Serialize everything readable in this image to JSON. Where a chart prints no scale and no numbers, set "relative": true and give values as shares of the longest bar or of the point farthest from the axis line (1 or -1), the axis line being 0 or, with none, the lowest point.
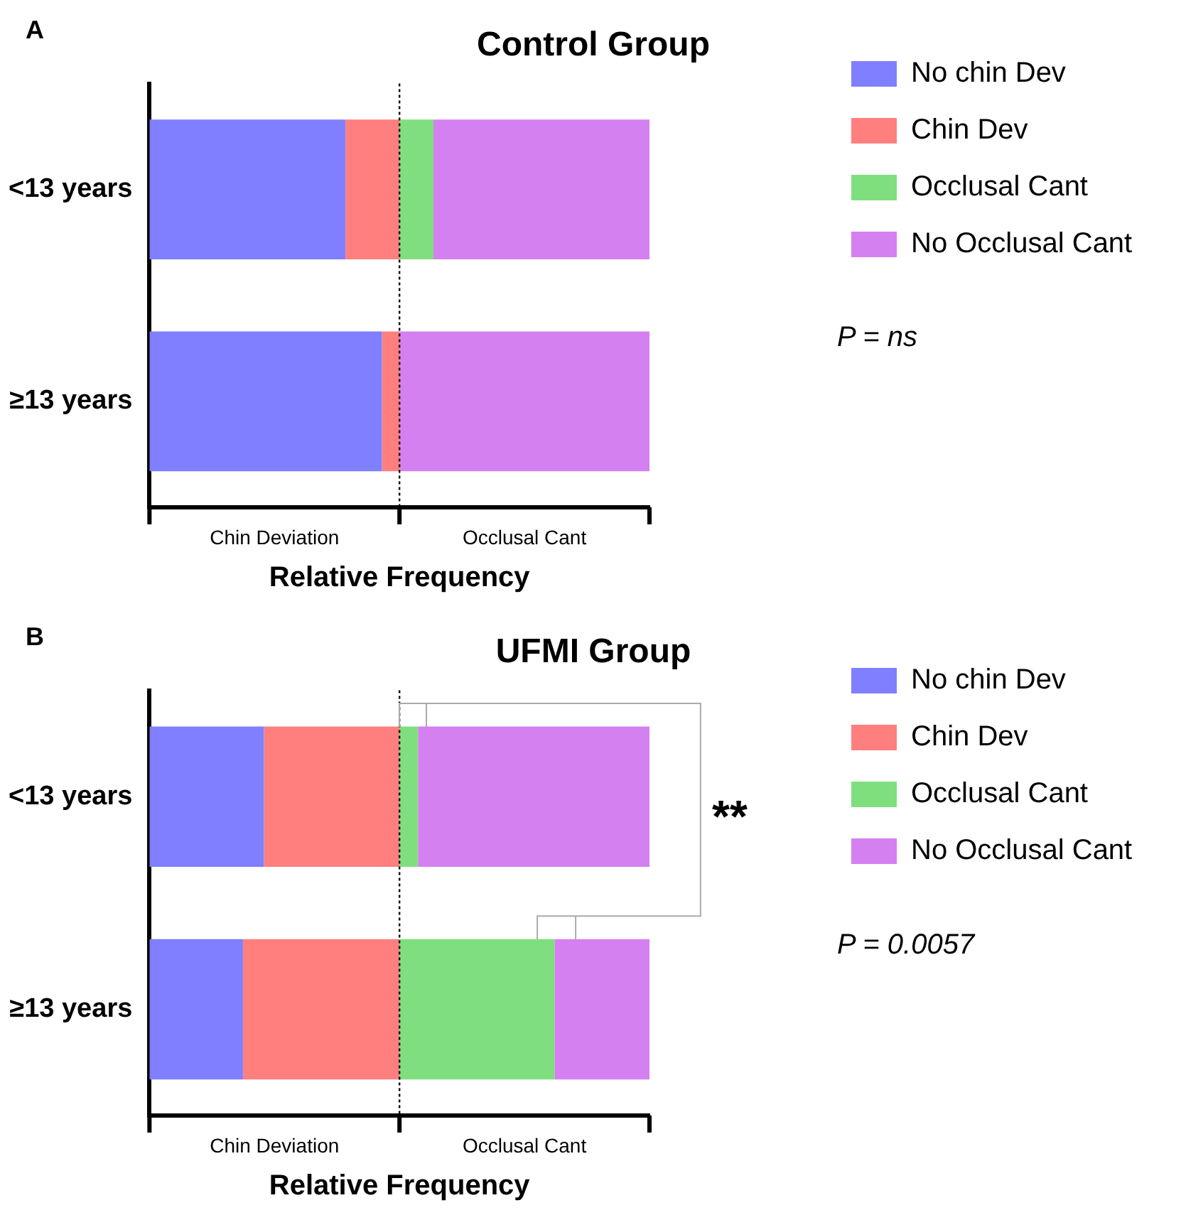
{
  "chart_data": [
    {
      "type": "bar",
      "orientation": "horizontal",
      "stacked": true,
      "relative": true,
      "title": "Control Group",
      "xlabel": "Relative Frequency",
      "categories": [
        "<13 years",
        "≥13 years"
      ],
      "legend": "top right",
      "grid": false,
      "series": [
        {
          "name": "No chin Dev",
          "color": "#7f7fff",
          "values": [
            0.392,
            0.465
          ]
        },
        {
          "name": "Chin Dev",
          "color": "#ff7f7f",
          "values": [
            0.108,
            0.035
          ]
        },
        {
          "name": "Occlusal Cant",
          "color": "#7fdf7f",
          "values": [
            0.068,
            0
          ]
        },
        {
          "name": "No Occlusal Cant",
          "color": "#d580f0",
          "values": [
            0.432,
            0.5
          ]
        }
      ],
      "ref_lines": [
        {
          "axis": "x",
          "value": 0.5,
          "line_style": "dotted",
          "color": "#000000"
        }
      ],
      "annotations": [
        "A",
        "Chin Deviation",
        "Occlusal Cant",
        "P = ns"
      ]
    },
    {
      "type": "bar",
      "orientation": "horizontal",
      "stacked": true,
      "relative": true,
      "title": "UFMI Group",
      "xlabel": "Relative Frequency",
      "categories": [
        "<13 years",
        "≥13 years"
      ],
      "legend": "top right",
      "grid": false,
      "series": [
        {
          "name": "No chin Dev",
          "color": "#7f7fff",
          "values": [
            0.229,
            0.187
          ]
        },
        {
          "name": "Chin Dev",
          "color": "#ff7f7f",
          "values": [
            0.271,
            0.313
          ]
        },
        {
          "name": "Occlusal Cant",
          "color": "#7fdf7f",
          "values": [
            0.037,
            0.31
          ]
        },
        {
          "name": "No Occlusal Cant",
          "color": "#d580f0",
          "values": [
            0.463,
            0.19
          ]
        }
      ],
      "ref_lines": [
        {
          "axis": "x",
          "value": 0.5,
          "line_style": "dotted",
          "color": "#000000"
        }
      ],
      "annotations": [
        "B",
        "Chin Deviation",
        "Occlusal Cant",
        "P = 0.0057",
        "**"
      ]
    }
  ]
}
